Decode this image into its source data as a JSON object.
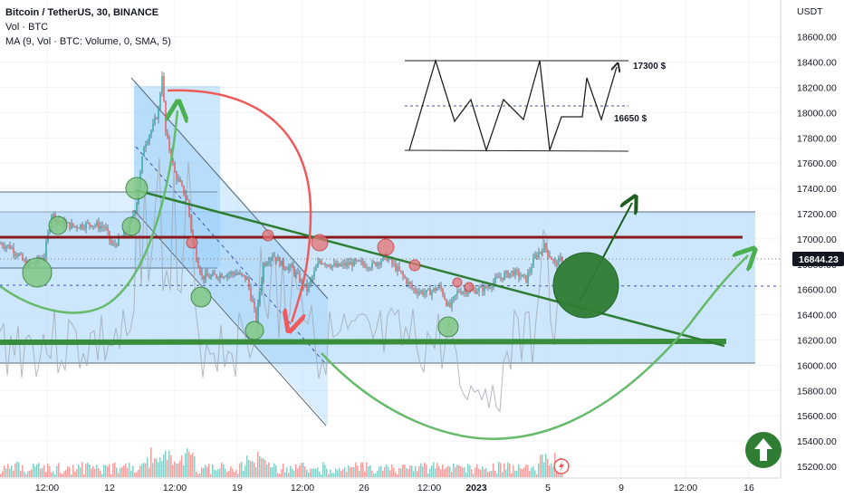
{
  "legend": {
    "title": "Bitcoin / TetherUS, 30, BINANCE",
    "volume_label": "Vol · BTC",
    "ma_label": "MA (9, Vol · BTC: Volume, 0, SMA, 5)"
  },
  "chart_data": {
    "type": "line",
    "title": "Bitcoin / TetherUS, 30, BINANCE",
    "currency": "USDT",
    "y_ticks": [
      15200,
      15400,
      15600,
      15800,
      16000,
      16200,
      16400,
      16600,
      16800,
      17000,
      17200,
      17400,
      17600,
      17800,
      18000,
      18200,
      18400,
      18600
    ],
    "ylim": [
      15120,
      18760
    ],
    "x_tick_labels": [
      "12:00",
      "12",
      "12:00",
      "19",
      "12:00",
      "26",
      "12:00",
      "2023",
      "5",
      "9",
      "12:00",
      "16"
    ],
    "current_price": "16844.23",
    "price_series": [
      {
        "t": 0,
        "y": 16960
      },
      {
        "t": 10,
        "y": 16940
      },
      {
        "t": 20,
        "y": 16870
      },
      {
        "t": 28,
        "y": 16790
      },
      {
        "t": 36,
        "y": 16810
      },
      {
        "t": 48,
        "y": 16870
      },
      {
        "t": 56,
        "y": 17200
      },
      {
        "t": 65,
        "y": 17130
      },
      {
        "t": 80,
        "y": 17100
      },
      {
        "t": 100,
        "y": 17120
      },
      {
        "t": 115,
        "y": 17090
      },
      {
        "t": 123,
        "y": 16940
      },
      {
        "t": 140,
        "y": 17060
      },
      {
        "t": 150,
        "y": 17290
      },
      {
        "t": 158,
        "y": 17740
      },
      {
        "t": 168,
        "y": 17890
      },
      {
        "t": 174,
        "y": 18020
      },
      {
        "t": 178,
        "y": 18310
      },
      {
        "t": 182,
        "y": 17840
      },
      {
        "t": 192,
        "y": 17520
      },
      {
        "t": 200,
        "y": 17400
      },
      {
        "t": 206,
        "y": 17300
      },
      {
        "t": 212,
        "y": 16970
      },
      {
        "t": 222,
        "y": 16700
      },
      {
        "t": 232,
        "y": 16700
      },
      {
        "t": 245,
        "y": 16720
      },
      {
        "t": 260,
        "y": 16730
      },
      {
        "t": 272,
        "y": 16680
      },
      {
        "t": 282,
        "y": 16360
      },
      {
        "t": 290,
        "y": 16800
      },
      {
        "t": 300,
        "y": 16880
      },
      {
        "t": 310,
        "y": 16800
      },
      {
        "t": 322,
        "y": 16760
      },
      {
        "t": 338,
        "y": 16600
      },
      {
        "t": 352,
        "y": 16830
      },
      {
        "t": 370,
        "y": 16780
      },
      {
        "t": 390,
        "y": 16810
      },
      {
        "t": 410,
        "y": 16790
      },
      {
        "t": 425,
        "y": 16860
      },
      {
        "t": 440,
        "y": 16740
      },
      {
        "t": 455,
        "y": 16600
      },
      {
        "t": 470,
        "y": 16570
      },
      {
        "t": 485,
        "y": 16620
      },
      {
        "t": 495,
        "y": 16450
      },
      {
        "t": 505,
        "y": 16590
      },
      {
        "t": 520,
        "y": 16590
      },
      {
        "t": 535,
        "y": 16610
      },
      {
        "t": 550,
        "y": 16690
      },
      {
        "t": 565,
        "y": 16740
      },
      {
        "t": 580,
        "y": 16680
      },
      {
        "t": 590,
        "y": 16860
      },
      {
        "t": 600,
        "y": 16940
      },
      {
        "t": 612,
        "y": 16800
      },
      {
        "t": 620,
        "y": 16844
      }
    ],
    "horizontal_levels": [
      16190,
      17010
    ],
    "range_box": {
      "top": 17200,
      "bottom": 16010
    },
    "annotations": {
      "upper_label": "17300 $",
      "lower_label": "16650 $"
    },
    "volume_ma_visible": true
  },
  "colors": {
    "green_accent": "#2e7d32",
    "red_line": "#8b1a1a",
    "curve_red": "#f05a5a",
    "price_tag_bg": "#131722",
    "box_fill": "#bbdefb"
  }
}
